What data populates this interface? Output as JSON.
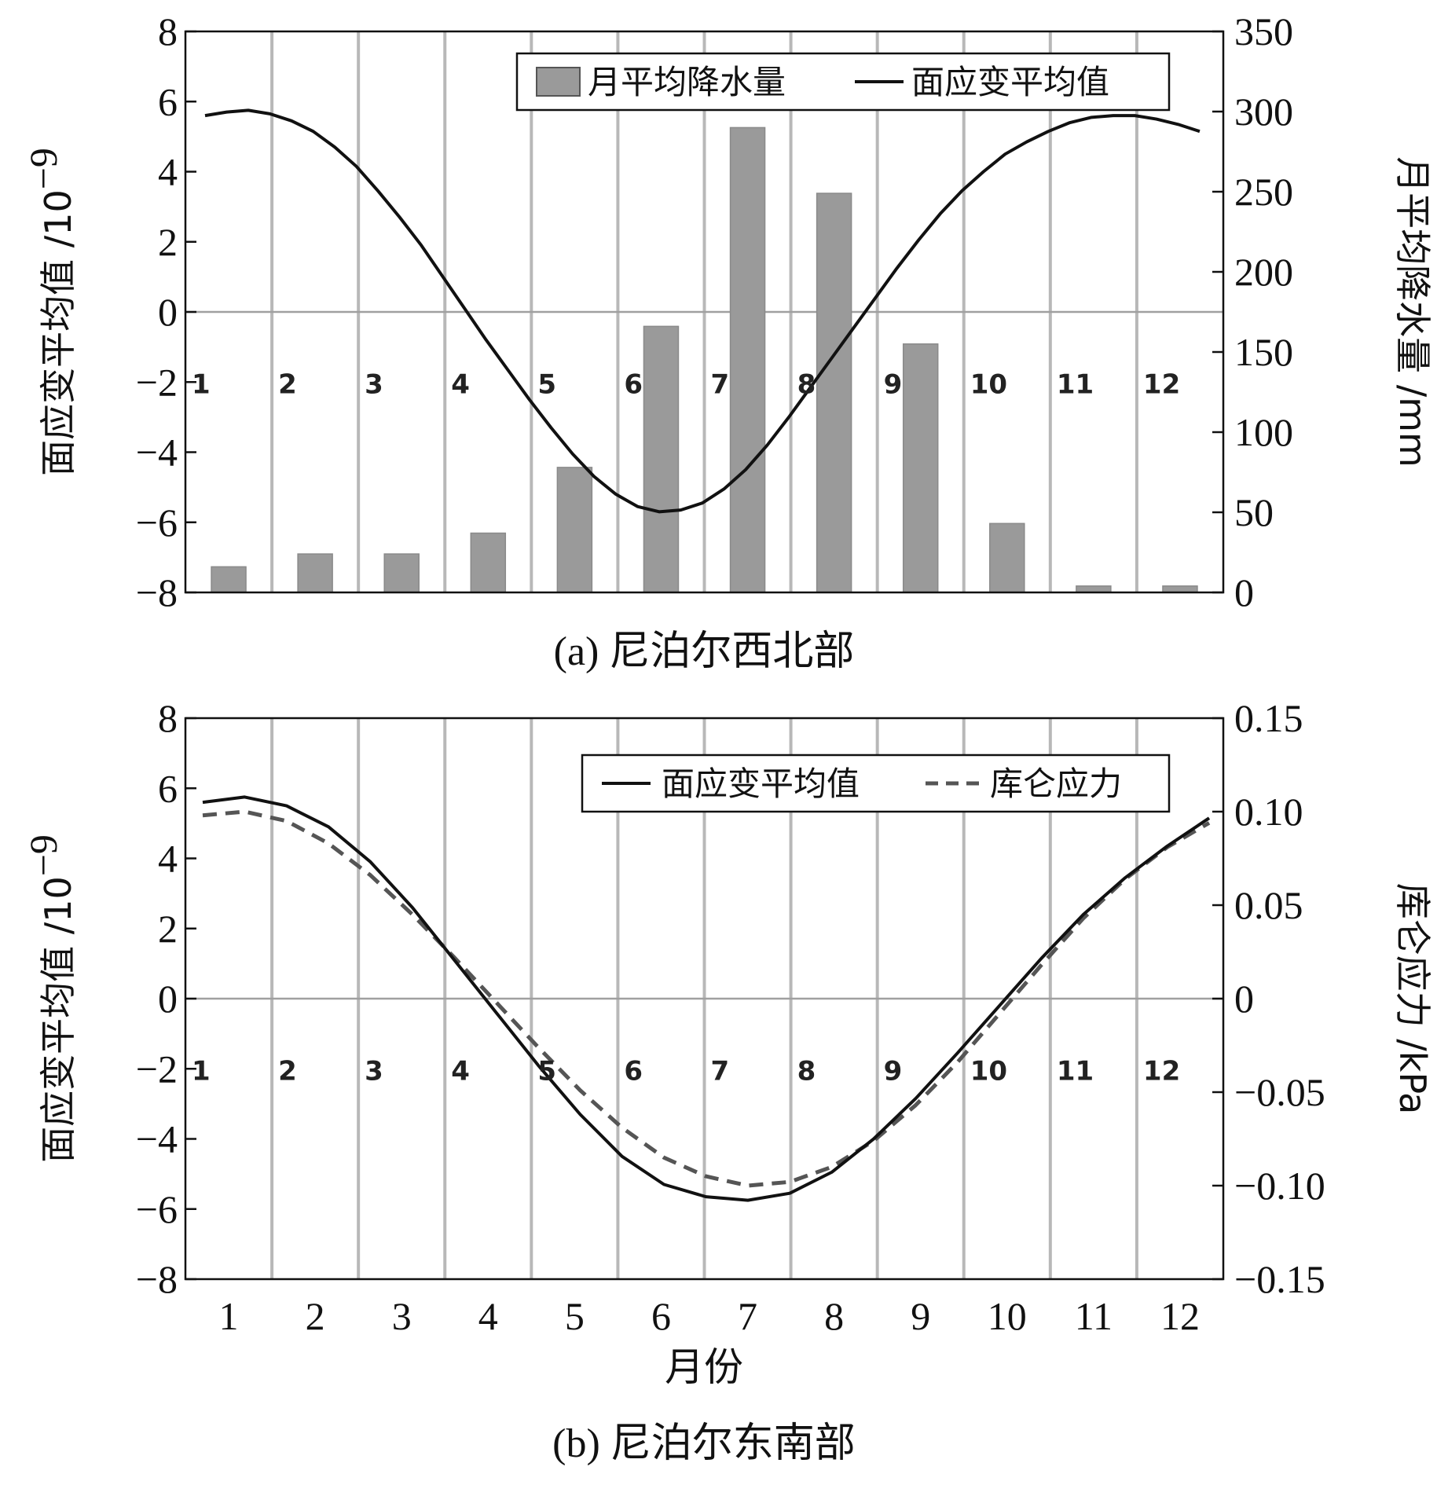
{
  "chart_data": [
    {
      "id": "a",
      "type": "bar+line",
      "caption": "(a) 尼泊尔西北部",
      "months": [
        "1",
        "2",
        "3",
        "4",
        "5",
        "6",
        "7",
        "8",
        "9",
        "10",
        "11",
        "12"
      ],
      "inner_month_labels": [
        "1",
        "2",
        "3",
        "4",
        "5",
        "6",
        "7",
        "8",
        "9",
        "10",
        "11",
        "12"
      ],
      "left_axis": {
        "label": "面应变平均值 /10",
        "label_exp": "−9",
        "ylim": [
          -8,
          8
        ],
        "ticks": [
          "8",
          "6",
          "4",
          "2",
          "0",
          "−2",
          "−4",
          "−6",
          "−8"
        ]
      },
      "right_axis": {
        "label": "月平均降水量 /mm",
        "ylim": [
          0,
          350
        ],
        "ticks": [
          "350",
          "300",
          "250",
          "200",
          "150",
          "100",
          "50",
          "0"
        ]
      },
      "series": [
        {
          "name": "月平均降水量",
          "kind": "bar",
          "axis": "right",
          "color": "#9a9a9a",
          "values": [
            16,
            24,
            24,
            37,
            78,
            166,
            290,
            249,
            155,
            43,
            4,
            4
          ]
        },
        {
          "name": "面应变平均值",
          "kind": "line",
          "axis": "left",
          "color": "#111111",
          "x": [
            0.75,
            1.0,
            1.25,
            1.5,
            1.75,
            2.0,
            2.25,
            2.5,
            2.75,
            3.0,
            3.25,
            3.5,
            3.75,
            4.0,
            4.25,
            4.5,
            4.75,
            5.0,
            5.25,
            5.5,
            5.75,
            6.0,
            6.25,
            6.5,
            6.75,
            7.0,
            7.25,
            7.5,
            7.75,
            8.0,
            8.25,
            8.5,
            8.75,
            9.0,
            9.25,
            9.5,
            9.75,
            10.0,
            10.25,
            10.5,
            10.75,
            11.0,
            11.25,
            11.5,
            11.75,
            12.0,
            12.25
          ],
          "values": [
            5.6,
            5.7,
            5.75,
            5.65,
            5.45,
            5.15,
            4.7,
            4.15,
            3.45,
            2.7,
            1.9,
            1.0,
            0.1,
            -0.8,
            -1.65,
            -2.5,
            -3.3,
            -4.05,
            -4.7,
            -5.2,
            -5.55,
            -5.7,
            -5.65,
            -5.45,
            -5.05,
            -4.5,
            -3.8,
            -3.0,
            -2.15,
            -1.3,
            -0.45,
            0.4,
            1.25,
            2.05,
            2.8,
            3.45,
            4.0,
            4.5,
            4.85,
            5.15,
            5.4,
            5.55,
            5.6,
            5.6,
            5.5,
            5.35,
            5.15
          ]
        }
      ]
    },
    {
      "id": "b",
      "type": "line",
      "caption": "(b) 尼泊尔东南部",
      "xlabel": "月份",
      "months": [
        "1",
        "2",
        "3",
        "4",
        "5",
        "6",
        "7",
        "8",
        "9",
        "10",
        "11",
        "12"
      ],
      "inner_month_labels": [
        "1",
        "2",
        "3",
        "4",
        "5",
        "6",
        "7",
        "8",
        "9",
        "10",
        "11",
        "12"
      ],
      "left_axis": {
        "label": "面应变平均值 /10",
        "label_exp": "−9",
        "ylim": [
          -8,
          8
        ],
        "ticks": [
          "8",
          "6",
          "4",
          "2",
          "0",
          "−2",
          "−4",
          "−6",
          "−8"
        ]
      },
      "right_axis": {
        "label": "库仑应力 /kPa",
        "ylim": [
          -0.15,
          0.15
        ],
        "ticks": [
          "0.15",
          "0.10",
          "0.05",
          "0",
          "−0.05",
          "−0.10",
          "−0.15"
        ]
      },
      "series": [
        {
          "name": "面应变平均值",
          "kind": "line",
          "axis": "left",
          "style": "solid",
          "color": "#111111",
          "values": [
            5.6,
            5.75,
            5.5,
            4.9,
            3.9,
            2.6,
            1.1,
            -0.4,
            -1.9,
            -3.3,
            -4.5,
            -5.3,
            -5.65,
            -5.75,
            -5.55,
            -4.95,
            -4.0,
            -2.85,
            -1.55,
            -0.2,
            1.15,
            2.4,
            3.45,
            4.35,
            5.15
          ]
        },
        {
          "name": "库仑应力",
          "kind": "line",
          "axis": "right",
          "style": "dashed",
          "color": "#555555",
          "values": [
            0.098,
            0.1,
            0.095,
            0.083,
            0.066,
            0.045,
            0.022,
            -0.002,
            -0.026,
            -0.049,
            -0.069,
            -0.085,
            -0.095,
            -0.1,
            -0.098,
            -0.09,
            -0.076,
            -0.057,
            -0.034,
            -0.008,
            0.018,
            0.043,
            0.064,
            0.081,
            0.094
          ]
        }
      ]
    }
  ]
}
